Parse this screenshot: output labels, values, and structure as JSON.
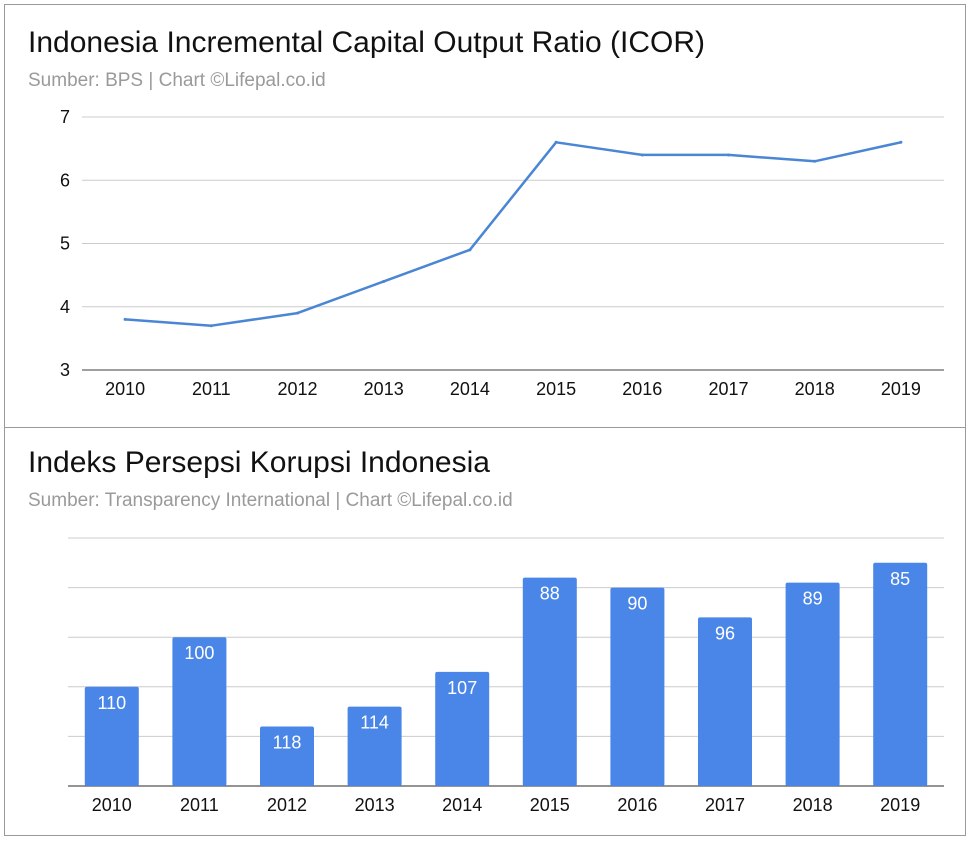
{
  "charts": [
    {
      "title": "Indonesia Incremental Capital Output Ratio (ICOR)",
      "subtitle": "Sumber: BPS |  Chart ©Lifepal.co.id"
    },
    {
      "title": "Indeks Persepsi Korupsi Indonesia",
      "subtitle": "Sumber: Transparency International |  Chart ©Lifepal.co.id"
    }
  ],
  "chart_data": [
    {
      "type": "line",
      "title": "Indonesia Incremental Capital Output Ratio (ICOR)",
      "subtitle": "Sumber: BPS |  Chart ©Lifepal.co.id",
      "x": [
        "2010",
        "2011",
        "2012",
        "2013",
        "2014",
        "2015",
        "2016",
        "2017",
        "2018",
        "2019"
      ],
      "series": [
        {
          "values": [
            3.8,
            3.7,
            3.9,
            4.4,
            4.9,
            6.6,
            6.4,
            6.4,
            6.3,
            6.6
          ]
        }
      ],
      "ylim": [
        3,
        7
      ],
      "yticks": [
        "3",
        "4",
        "5",
        "6",
        "7"
      ],
      "grid": true,
      "color": "#4a86d4"
    },
    {
      "type": "bar",
      "title": "Indeks Persepsi Korupsi Indonesia",
      "subtitle": "Sumber: Transparency International |  Chart ©Lifepal.co.id",
      "categories": [
        "2010",
        "2011",
        "2012",
        "2013",
        "2014",
        "2015",
        "2016",
        "2017",
        "2018",
        "2019"
      ],
      "values": [
        110,
        100,
        118,
        114,
        107,
        88,
        90,
        96,
        89,
        85
      ],
      "bar_scale": [
        80,
        130
      ],
      "grid": true,
      "color": "#4a86e8"
    }
  ]
}
